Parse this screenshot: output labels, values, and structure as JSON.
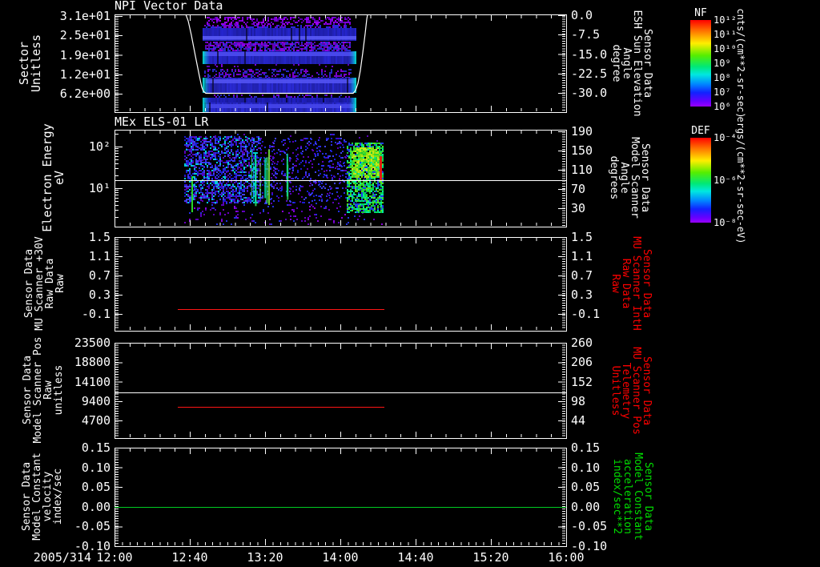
{
  "app": {
    "description": "Multi-panel spacecraft sensor time-series and spectrogram plot"
  },
  "colors": {
    "background": "#000000",
    "axis": "#ffffff",
    "red_series": "#ff1515",
    "green_series": "#00cc22",
    "red_label": "#ff0000",
    "green_label": "#00dd00",
    "white_label": "#ffffff"
  },
  "xaxis": {
    "date_label": "2005/314",
    "tick_labels": [
      "12:00",
      "12:40",
      "13:20",
      "14:00",
      "14:40",
      "15:20",
      "16:00"
    ]
  },
  "panels": [
    {
      "title": "NPI Vector Data",
      "left_label": "Sector\nUnitless",
      "left_ticks": [
        "3.1e+01",
        "2.5e+01",
        "1.9e+01",
        "1.2e+01",
        "6.2e+00"
      ],
      "right_ticks": [
        "0.0",
        "-7.5",
        "-15.0",
        "-22.5",
        "-30.0"
      ],
      "right_label": "Sensor Data\nESH Sun Elevation\nAngle\ndegree",
      "right_label_color": "#ffffff"
    },
    {
      "title": "MEx ELS-01 LR",
      "left_label": "Electron Energy\neV",
      "left_ticks": [
        "10²",
        "10¹"
      ],
      "right_ticks": [
        "190",
        "150",
        "110",
        "70",
        "30"
      ],
      "right_label": "Sensor Data\nModel Scanner\nAngle\ndegrees",
      "right_label_color": "#ffffff"
    },
    {
      "left_label": "Sensor Data\nMU Scanner +30V\nRaw Data\nRaw",
      "left_ticks": [
        "1.5",
        "1.1",
        "0.7",
        "0.3",
        "-0.1"
      ],
      "right_ticks": [
        "1.5",
        "1.1",
        "0.7",
        "0.3",
        "-0.1"
      ],
      "right_label": "Sensor Data\nMU Scanner IntH\nRaw Data\nRaw",
      "right_label_color": "#ff0000"
    },
    {
      "left_label": "Sensor Data\nModel Scanner Pos\nRaw\nunitless",
      "left_ticks": [
        "23500",
        "18800",
        "14100",
        "9400",
        "4700"
      ],
      "right_ticks": [
        "260",
        "206",
        "152",
        "98",
        "44"
      ],
      "right_label": "Sensor Data\nMU Scanner Pos\nTelemetry\nUnitless",
      "right_label_color": "#ff0000"
    },
    {
      "left_label": "Sensor Data\nModel Constant\nvelocity\nindex/sec",
      "left_ticks": [
        "0.15",
        "0.10",
        "0.05",
        "0.00",
        "-0.05",
        "-0.10"
      ],
      "right_ticks": [
        "0.15",
        "0.10",
        "0.05",
        "0.00",
        "-0.05",
        "-0.10"
      ],
      "right_label": "Sensor Data\nModel Constant\nacceleration\nindex/sec**2",
      "right_label_color": "#00dd00"
    }
  ],
  "colorbars": [
    {
      "title": "NF",
      "tick_labels": [
        "10¹²",
        "10¹¹",
        "10¹⁰",
        "10⁹",
        "10⁸",
        "10⁷",
        "10⁶"
      ],
      "unit_label": "cnts/(cm**2-sr-sec)"
    },
    {
      "title": "DEF",
      "tick_labels": [
        "10⁻⁴",
        "10⁻⁶",
        "10⁻⁸"
      ],
      "unit_label": "ergs/(cm**2-sr-sec-eV)"
    }
  ],
  "chart_data": [
    {
      "type": "heatmap",
      "title": "NPI Vector Data",
      "x_range": [
        "2005/314 12:00",
        "2005/314 16:00"
      ],
      "y_left": {
        "label": "Sector Unitless",
        "ticks": [
          31,
          25,
          19,
          12,
          6.2
        ]
      },
      "y_right": {
        "label": "Sensor Data ESH Sun Elevation Angle degree",
        "ticks": [
          0.0,
          -7.5,
          -15.0,
          -22.5,
          -30.0
        ]
      },
      "colorbar": {
        "name": "NF",
        "unit": "cnts/(cm**2-sr-sec)",
        "log_range": [
          1000000.0,
          1000000000000.0
        ]
      },
      "data_interval": [
        "12:47",
        "14:08"
      ],
      "sun_elevation_curve_points": [
        [
          "12:38",
          0
        ],
        [
          "12:47",
          -31
        ],
        [
          "14:08",
          -31
        ],
        [
          "14:15",
          0
        ]
      ],
      "render": {
        "bands": [
          {
            "style": "speckle",
            "x": [
              115,
              294
            ],
            "y": [
              3,
              13
            ],
            "density": 0.45,
            "size": 2,
            "colors": [
              "#7c00d8",
              "#5c00b0",
              "#9900ee"
            ]
          },
          {
            "style": "speckle",
            "x": [
              112,
              296
            ],
            "y": [
              13,
              17
            ],
            "density": 0.6,
            "size": 2,
            "colors": [
              "#7a00d0",
              "#2828d8"
            ]
          },
          {
            "style": "solid",
            "x": [
              110,
              302
            ],
            "y": [
              17,
              33
            ],
            "color": "#2525cf",
            "stripe": {
              "y": [
                27,
                31.5
              ],
              "color": "#5a5af5"
            },
            "edges": false
          },
          {
            "style": "speckle",
            "x": [
              113,
              294
            ],
            "y": [
              34,
              46
            ],
            "density": 0.7,
            "size": 2,
            "colors": [
              "#8a00e0",
              "#6000b0",
              "#2a2ad0"
            ]
          },
          {
            "style": "solid",
            "x": [
              110,
              302
            ],
            "y": [
              46,
              62
            ],
            "color": "#2828d2",
            "stripe": {
              "y": [
                47,
                52
              ],
              "color": "#4d4df0"
            },
            "edges": true
          },
          {
            "style": "speckle",
            "x": [
              113,
              294
            ],
            "y": [
              62,
              66
            ],
            "density": 0.12,
            "size": 2,
            "colors": [
              "#7c00d8",
              "#5c00b0"
            ]
          },
          {
            "style": "speckle",
            "x": [
              112,
              296
            ],
            "y": [
              68,
              79
            ],
            "density": 0.38,
            "size": 2,
            "colors": [
              "#7a00cc",
              "#2626c4"
            ]
          },
          {
            "style": "solid",
            "x": [
              110,
              302
            ],
            "y": [
              79,
              98
            ],
            "color": "#2a2ad6",
            "stripe": {
              "y": [
                81,
                86
              ],
              "color": "#5252f2"
            },
            "edges": true
          },
          {
            "style": "speckle",
            "x": [
              112,
              298
            ],
            "y": [
              100,
              104
            ],
            "density": 0.3,
            "size": 2,
            "colors": [
              "#7c00d8",
              "#2828c8"
            ]
          },
          {
            "style": "solid",
            "x": [
              110,
              302
            ],
            "y": [
              104,
              110
            ],
            "color": "#2020c4",
            "edges": true
          },
          {
            "style": "solid",
            "x": [
              110,
              302
            ],
            "y": [
              110,
              122
            ],
            "color": "#2b2bd8",
            "stripe": {
              "y": [
                112,
                117
              ],
              "color": "#4646ea"
            },
            "edges": true
          }
        ]
      }
    },
    {
      "type": "heatmap",
      "title": "MEx ELS-01 LR",
      "y_left": {
        "label": "Electron Energy eV",
        "scale": "log",
        "ticks": [
          100,
          10
        ]
      },
      "y_right": {
        "label": "Sensor Data Model Scanner Angle degrees",
        "ticks": [
          190,
          150,
          110,
          70,
          30
        ]
      },
      "colorbar": {
        "name": "DEF",
        "unit": "ergs/(cm**2-sr-sec-eV)",
        "log_range": [
          1e-08,
          0.0001
        ]
      },
      "data_interval": [
        "12:37",
        "14:22"
      ],
      "white_line": {
        "model_scanner_angle_deg": 90,
        "electron_energy_eV": 15.6
      },
      "render": {
        "ops": [
          {
            "op": "speckle",
            "x": [
              87,
              335
            ],
            "y": [
              5,
              118
            ],
            "density": 0.05,
            "size": 2,
            "colors": [
              "#5800b8",
              "#2230dd"
            ]
          },
          {
            "op": "speckle",
            "x": [
              87,
              182
            ],
            "y": [
              8,
              92
            ],
            "density": 0.5,
            "size": 2,
            "colors": [
              "#1a1ad0",
              "#2d2de6",
              "#4040f0",
              "#5800b8",
              "#00c8d8"
            ]
          },
          {
            "op": "speckle",
            "x": [
              182,
              290
            ],
            "y": [
              10,
              92
            ],
            "density": 0.16,
            "size": 2,
            "colors": [
              "#1a1ad0",
              "#2d2de6",
              "#4040f0",
              "#5800b8"
            ]
          },
          {
            "op": "streaks",
            "x": [
              163,
              205
            ],
            "count": 8,
            "ytop": [
              22,
              42
            ],
            "ybot": [
              78,
              96
            ],
            "colors": [
              "#00e0b0",
              "#30e860",
              "#7df040",
              "#00c8f0"
            ]
          },
          {
            "op": "streaks",
            "x": [
              205,
              218
            ],
            "count": 3,
            "ytop": [
              28,
              45
            ],
            "ybot": [
              75,
              90
            ],
            "colors": [
              "#00e0b0",
              "#30e860"
            ]
          },
          {
            "op": "vline",
            "x": 96,
            "y": [
              58,
              103
            ],
            "w": 2,
            "color": "#28d828"
          },
          {
            "op": "speckle",
            "x": [
              290,
              335
            ],
            "y": [
              16,
              104
            ],
            "density": 0.72,
            "size": 2,
            "colors": [
              "#18c838",
              "#00d860",
              "#50e020",
              "#00e8a0",
              "#2040e8"
            ]
          },
          {
            "op": "speckle",
            "x": [
              296,
              332
            ],
            "y": [
              22,
              60
            ],
            "density": 0.75,
            "size": 2,
            "colors": [
              "#c0e818",
              "#85e010",
              "#30d830"
            ]
          },
          {
            "op": "rect",
            "x": [
              331,
              334
            ],
            "y": [
              33,
              64
            ],
            "color": "#e02010"
          },
          {
            "op": "speckle",
            "x": [
              87,
              335
            ],
            "y": [
              95,
              118
            ],
            "density": 0.035,
            "size": 2,
            "colors": [
              "#6a00c0",
              "#8800dd"
            ]
          }
        ]
      }
    },
    {
      "type": "line",
      "ylim": [
        -0.45,
        1.5
      ],
      "series": [
        {
          "name": "Sensor Data MU Scanner IntH Raw Data Raw",
          "color": "#ff1515",
          "value": 0.0,
          "interval": [
            "12:34",
            "14:23"
          ]
        }
      ]
    },
    {
      "type": "line",
      "ylim_left": [
        23500,
        4700
      ],
      "ylim_right": [
        260,
        44
      ],
      "series": [
        {
          "name": "Sensor Data Model Scanner Pos Raw unitless",
          "color": "#ffffff",
          "value": 11500,
          "interval": [
            "12:00",
            "16:00"
          ]
        },
        {
          "name": "Sensor Data MU Scanner Pos Telemetry Unitless",
          "color": "#ff1515",
          "value_left_axis": 8000,
          "value_right_axis": 82,
          "interval": [
            "12:34",
            "14:23"
          ]
        }
      ]
    },
    {
      "type": "line",
      "ylim": [
        -0.1,
        0.15
      ],
      "series": [
        {
          "name": "Sensor Data Model Constant velocity index/sec",
          "color": "#00cc22",
          "value": 0.0,
          "interval": [
            "12:00",
            "16:00"
          ]
        }
      ]
    }
  ]
}
